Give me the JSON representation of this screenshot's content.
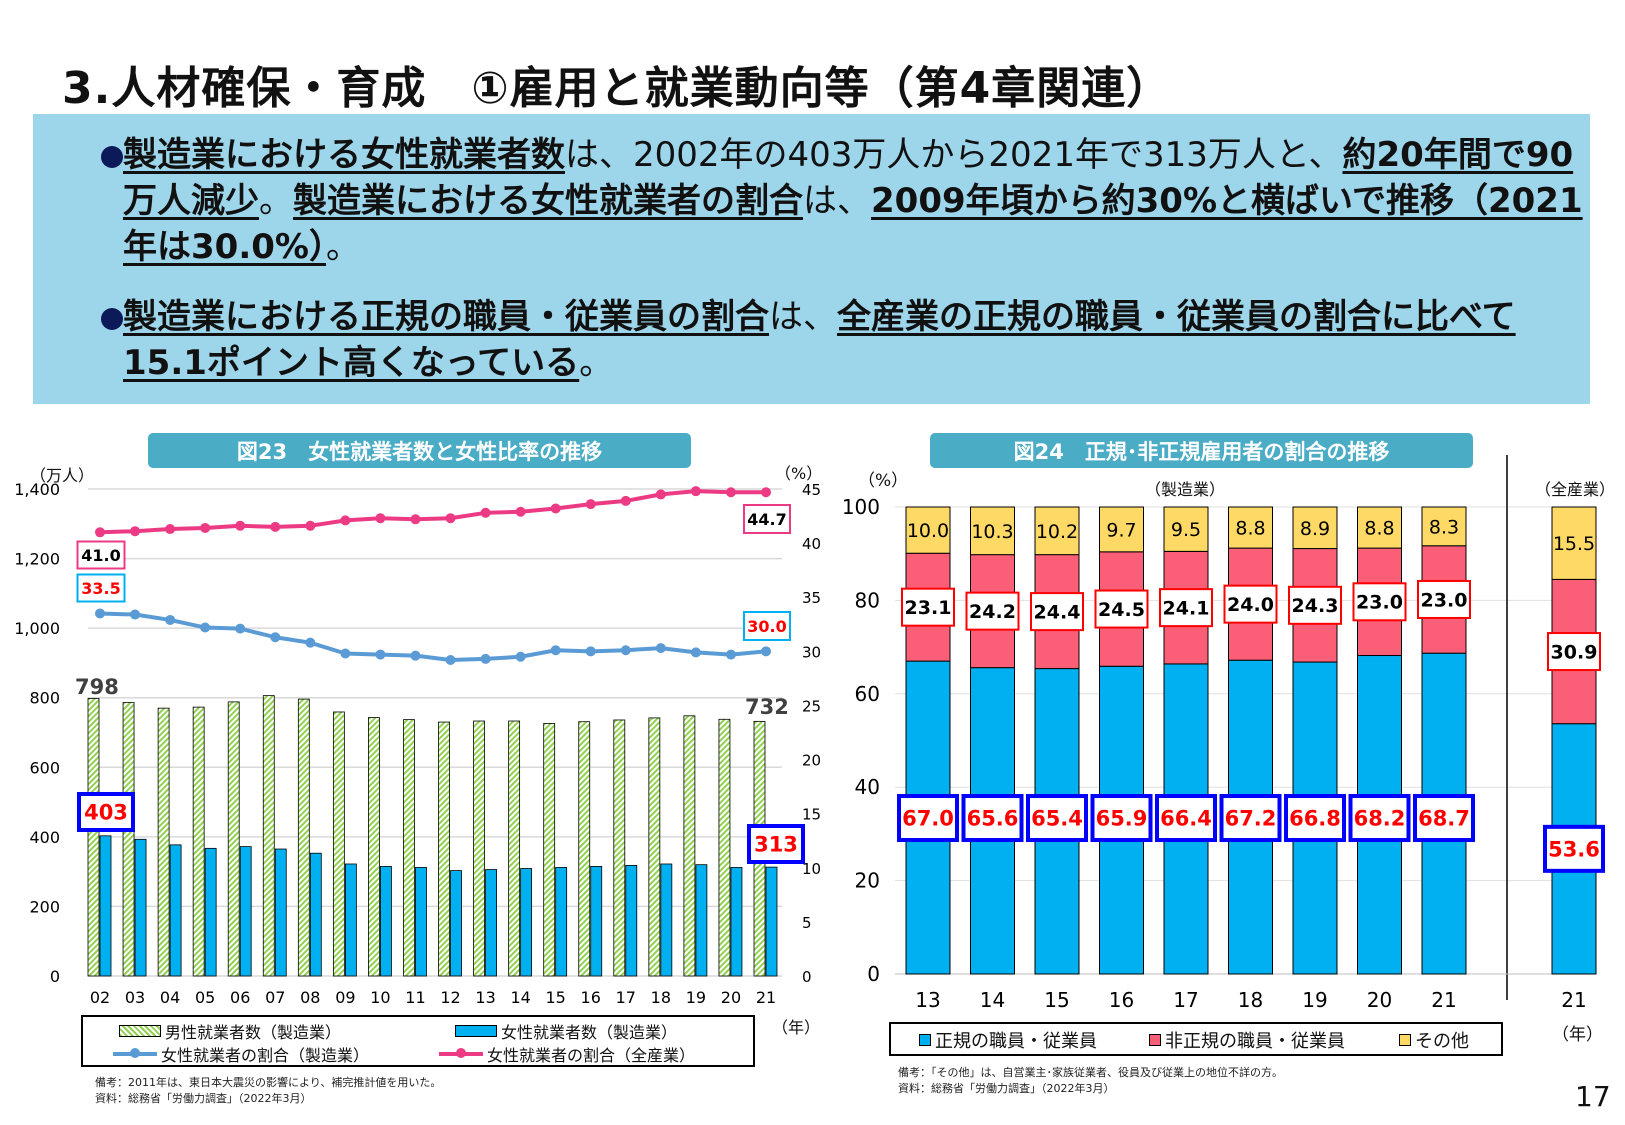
{
  "title": "3.人材確保・育成　①雇用と就業動向等（第4章関連）",
  "summary": {
    "bullet1": [
      "製造業における女性就業者数",
      "は、2002年の403万人から2021年で313万人と、",
      "約20年間で90万人減少",
      "。",
      "製造業における女性就業者の割合",
      "は、",
      "2009年頃から約30%と横ばいで推移（2021年は30.0%）",
      "。"
    ],
    "bullet2": [
      "製造業における正規の職員・従業員の割合",
      "は、",
      "全産業の正規の職員・従業員の割合に比べて15.1ポイント高くなっている",
      "。"
    ]
  },
  "fig23": {
    "title": "図23　女性就業者数と女性比率の推移",
    "left_unit": "（万人）",
    "right_unit": "（%）",
    "x_unit": "（年）",
    "legend": [
      "男性就業者数（製造業）",
      "女性就業者数（製造業）",
      "女性就業者の割合（製造業）",
      "女性就業者の割合（全産業）"
    ],
    "callouts": {
      "male_first": "798",
      "male_last": "732",
      "female_first": "403",
      "female_last": "313",
      "all_first": "41.0",
      "all_last": "44.7",
      "mfg_first": "33.5",
      "mfg_last": "30.0"
    },
    "notes": [
      "備考：2011年は、東日本大震災の影響により、補完推計値を用いた。",
      "資料：総務省「労働力調査」（2022年3月）"
    ]
  },
  "fig24": {
    "title": "図24　正規･非正規雇用者の割合の推移",
    "y_unit": "（%）",
    "group_mfg": "（製造業）",
    "group_all": "（全産業）",
    "x_unit": "（年）",
    "legend": [
      "正規の職員・従業員",
      "非正規の職員・従業員",
      "その他"
    ],
    "notes": [
      "備考：「その他」は、自営業主･家族従業者、役員及び従業上の地位不詳の方。",
      "資料：総務省「労働力調査」（2022年3月）"
    ]
  },
  "page_number": "17",
  "colors": {
    "male": "#92d050",
    "female": "#00b0f0",
    "mfg_line": "#5b9bd5",
    "all_line": "#ec3a84",
    "regular": "#00b0f0",
    "nonregular": "#fb5f77",
    "other": "#ffd966",
    "callout_blue": "#0000ff",
    "pill": "#4bacc6",
    "summary_bg": "#9dd5ea"
  },
  "chart_data": [
    {
      "type": "bar+line",
      "title": "図23　女性就業者数と女性比率の推移",
      "categories": [
        "02",
        "03",
        "04",
        "05",
        "06",
        "07",
        "08",
        "09",
        "10",
        "11",
        "12",
        "13",
        "14",
        "15",
        "16",
        "17",
        "18",
        "19",
        "20",
        "21"
      ],
      "y_left": {
        "label": "（万人）",
        "range": [
          0,
          1400
        ],
        "ticks": [
          "0",
          "200",
          "400",
          "600",
          "800",
          "1,000",
          "1,200",
          "1,400"
        ]
      },
      "y_right": {
        "label": "（%）",
        "range": [
          0,
          45
        ],
        "ticks": [
          "0",
          "5",
          "10",
          "15",
          "20",
          "25",
          "30",
          "35",
          "40",
          "45"
        ]
      },
      "xlabel": "（年）",
      "grid": true,
      "legend_position": "bottom",
      "series": [
        {
          "name": "男性就業者数（製造業）",
          "type": "bar",
          "axis": "left",
          "values": [
            798,
            786,
            770,
            773,
            788,
            806,
            796,
            759,
            743,
            737,
            730,
            733,
            733,
            726,
            731,
            736,
            742,
            748,
            738,
            732
          ]
        },
        {
          "name": "女性就業者数（製造業）",
          "type": "bar",
          "axis": "left",
          "values": [
            403,
            393,
            377,
            367,
            372,
            365,
            353,
            322,
            315,
            312,
            303,
            306,
            309,
            312,
            315,
            318,
            322,
            320,
            312,
            313
          ]
        },
        {
          "name": "女性就業者の割合（製造業）",
          "type": "line",
          "axis": "right",
          "values": [
            33.5,
            33.4,
            32.9,
            32.2,
            32.1,
            31.3,
            30.8,
            29.8,
            29.7,
            29.6,
            29.2,
            29.3,
            29.5,
            30.1,
            30.0,
            30.1,
            30.3,
            29.9,
            29.7,
            30.0
          ]
        },
        {
          "name": "女性就業者の割合（全産業）",
          "type": "line",
          "axis": "right",
          "values": [
            41.0,
            41.1,
            41.3,
            41.4,
            41.6,
            41.5,
            41.6,
            42.1,
            42.3,
            42.2,
            42.3,
            42.8,
            42.9,
            43.2,
            43.6,
            43.9,
            44.5,
            44.8,
            44.7,
            44.7
          ]
        }
      ]
    },
    {
      "type": "stacked-bar",
      "title": "図24　正規･非正規雇用者の割合の推移",
      "categories": [
        "13",
        "14",
        "15",
        "16",
        "17",
        "18",
        "19",
        "20",
        "21",
        "21"
      ],
      "groups": [
        "（製造業）",
        "（製造業）",
        "（製造業）",
        "（製造業）",
        "（製造業）",
        "（製造業）",
        "（製造業）",
        "（製造業）",
        "（製造業）",
        "（全産業）"
      ],
      "y": {
        "label": "（%）",
        "range": [
          0,
          100
        ],
        "ticks": [
          "0",
          "20",
          "40",
          "60",
          "80",
          "100"
        ]
      },
      "xlabel": "（年）",
      "grid": true,
      "legend_position": "bottom",
      "series": [
        {
          "name": "正規の職員・従業員",
          "values": [
            "67.0",
            "65.6",
            "65.4",
            "65.9",
            "66.4",
            "67.2",
            "66.8",
            "68.2",
            "68.7",
            "53.6"
          ]
        },
        {
          "name": "非正規の職員・従業員",
          "values": [
            "23.1",
            "24.2",
            "24.4",
            "24.5",
            "24.1",
            "24.0",
            "24.3",
            "23.0",
            "23.0",
            "30.9"
          ]
        },
        {
          "name": "その他",
          "values": [
            "10.0",
            "10.3",
            "10.2",
            "9.7",
            "9.5",
            "8.8",
            "8.9",
            "8.8",
            "8.3",
            "15.5"
          ]
        }
      ]
    }
  ]
}
